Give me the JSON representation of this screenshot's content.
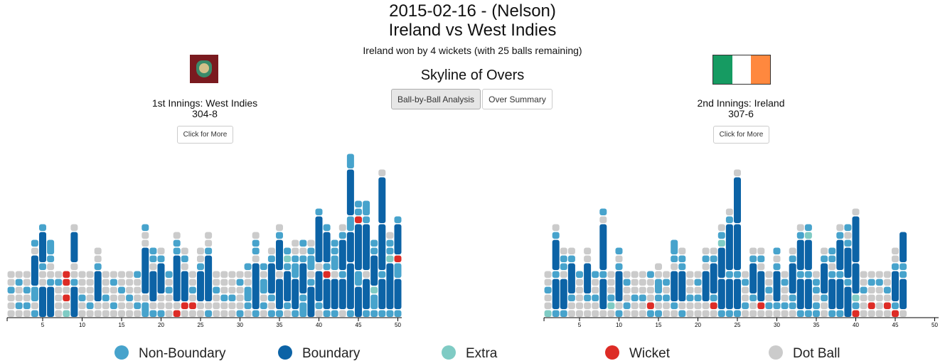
{
  "header": {
    "date_venue": "2015-02-16 - (Nelson)",
    "match": "Ireland vs West Indies",
    "result": "Ireland won by 4 wickets (with 25 balls remaining)",
    "section": "Skyline of Overs",
    "buttons": [
      "Ball-by-Ball Analysis",
      "Over Summary"
    ]
  },
  "innings": [
    {
      "label": "1st Innings: West Indies",
      "score": "304-8",
      "more": "Click for More",
      "xlim": [
        0,
        50
      ],
      "xticks": [
        5,
        10,
        15,
        20,
        25,
        30,
        35,
        40,
        45,
        50
      ],
      "overs": [
        [
          0,
          0,
          0,
          1,
          0,
          0
        ],
        [
          0,
          1,
          0,
          0,
          1,
          0
        ],
        [
          0,
          1,
          0,
          1,
          0,
          0
        ],
        [
          1,
          0,
          2,
          4,
          0,
          1
        ],
        [
          4,
          0,
          0,
          1,
          4,
          1
        ],
        [
          4,
          1,
          0,
          0,
          1,
          2
        ],
        [
          0,
          0,
          0,
          0,
          1,
          0
        ],
        [
          "e",
          0,
          "W",
          0,
          "W",
          "W"
        ],
        [
          4,
          1,
          0,
          0,
          4,
          0
        ],
        [
          0,
          0,
          1,
          0,
          0,
          0
        ],
        [
          0,
          1,
          0,
          0,
          0,
          0
        ],
        [
          0,
          0,
          4,
          1,
          0,
          0
        ],
        [
          0,
          0,
          1,
          0,
          0,
          0
        ],
        [
          0,
          1,
          0,
          0,
          1,
          0
        ],
        [
          0,
          0,
          0,
          1,
          0,
          0
        ],
        [
          0,
          0,
          1,
          0,
          0,
          0
        ],
        [
          0,
          1,
          0,
          0,
          0,
          1
        ],
        [
          2,
          0,
          6,
          0,
          0,
          1
        ],
        [
          1,
          0,
          4,
          0,
          1,
          1
        ],
        [
          1,
          0,
          0,
          4,
          1,
          0
        ],
        [
          0,
          0,
          0,
          1,
          0,
          1
        ],
        [
          "W",
          0,
          6,
          1,
          1,
          0
        ],
        [
          0,
          "W",
          4,
          0,
          1,
          0
        ],
        [
          0,
          "W",
          0,
          1,
          0,
          0
        ],
        [
          0,
          0,
          4,
          1,
          0,
          0
        ],
        [
          1,
          0,
          6,
          1,
          0,
          0
        ],
        [
          0,
          0,
          0,
          1,
          0,
          0
        ],
        [
          0,
          0,
          1,
          0,
          0,
          0
        ],
        [
          0,
          0,
          1,
          0,
          0,
          0
        ],
        [
          1,
          0,
          0,
          0,
          1,
          0
        ],
        [
          0,
          1,
          2,
          0,
          0,
          1
        ],
        [
          1,
          6,
          0,
          1,
          1,
          0
        ],
        [
          0,
          1,
          0,
          2,
          0,
          1
        ],
        [
          1,
          0,
          1,
          4,
          1,
          0
        ],
        [
          1,
          4,
          0,
          4,
          1,
          0
        ],
        [
          0,
          1,
          4,
          1,
          "e",
          1
        ],
        [
          1,
          4,
          2,
          1,
          0,
          0
        ],
        [
          2,
          1,
          4,
          1,
          0,
          1
        ],
        [
          4,
          1,
          0,
          2,
          1,
          0
        ],
        [
          0,
          1,
          4,
          0,
          6,
          1
        ],
        [
          1,
          4,
          "W",
          1,
          4,
          1
        ],
        [
          1,
          4,
          0,
          2,
          1,
          1
        ],
        [
          0,
          4,
          1,
          4,
          1,
          0
        ],
        [
          1,
          6,
          4,
          2,
          6,
          2
        ],
        [
          4,
          2,
          6,
          "W",
          1,
          1
        ],
        [
          1,
          4,
          0,
          6,
          1,
          2
        ],
        [
          1,
          2,
          "e",
          4,
          1,
          1
        ],
        [
          1,
          4,
          1,
          6,
          6,
          0
        ],
        [
          1,
          6,
          "e",
          1,
          1,
          0
        ],
        [
          1,
          4,
          2,
          "W",
          4,
          1
        ]
      ]
    },
    {
      "label": "2nd Innings: Ireland",
      "score": "307-6",
      "more": "Click for More",
      "xlim": [
        0,
        50
      ],
      "xticks": [
        5,
        10,
        15,
        20,
        25,
        30,
        35,
        40,
        45,
        50
      ],
      "overs": [
        [
          "e",
          0,
          0,
          1,
          0,
          0
        ],
        [
          1,
          4,
          1,
          4,
          1,
          0
        ],
        [
          1,
          4,
          0,
          1,
          1,
          0
        ],
        [
          0,
          0,
          1,
          4,
          1,
          0
        ],
        [
          0,
          0,
          0,
          0,
          0,
          1
        ],
        [
          0,
          0,
          1,
          4,
          0,
          0
        ],
        [
          0,
          0,
          1,
          0,
          0,
          1
        ],
        [
          0,
          4,
          1,
          6,
          0,
          1
        ],
        [
          0,
          "e",
          1,
          0,
          0,
          0
        ],
        [
          1,
          0,
          4,
          1,
          0,
          1
        ],
        [
          0,
          1,
          0,
          0,
          1,
          0
        ],
        [
          0,
          0,
          1,
          0,
          0,
          0
        ],
        [
          0,
          0,
          1,
          0,
          0,
          0
        ],
        [
          1,
          "W",
          0,
          0,
          0,
          1
        ],
        [
          1,
          0,
          1,
          2,
          0,
          0
        ],
        [
          0,
          0,
          1,
          0,
          1,
          0
        ],
        [
          0,
          1,
          4,
          0,
          1,
          2
        ],
        [
          1,
          0,
          4,
          1,
          1,
          0
        ],
        [
          0,
          0,
          1,
          0,
          0,
          0
        ],
        [
          0,
          0,
          1,
          0,
          1,
          0
        ],
        [
          0,
          0,
          4,
          0,
          1,
          0
        ],
        [
          0,
          "W",
          1,
          4,
          1,
          0
        ],
        [
          1,
          4,
          4,
          "e",
          1,
          0
        ],
        [
          1,
          4,
          1,
          6,
          1,
          0
        ],
        [
          1,
          4,
          1,
          6,
          6,
          0
        ],
        [
          0,
          1,
          0,
          0,
          1,
          0
        ],
        [
          0,
          0,
          1,
          4,
          1,
          0
        ],
        [
          0,
          "W",
          4,
          0,
          1,
          0
        ],
        [
          0,
          1,
          0,
          1,
          0,
          0
        ],
        [
          0,
          1,
          4,
          1,
          0,
          1
        ],
        [
          0,
          1,
          0,
          0,
          1,
          0
        ],
        [
          0,
          1,
          1,
          4,
          1,
          0
        ],
        [
          1,
          4,
          1,
          4,
          1,
          0
        ],
        [
          1,
          4,
          1,
          4,
          "e",
          1
        ],
        [
          1,
          1,
          0,
          1,
          1,
          0
        ],
        [
          0,
          0,
          1,
          4,
          1,
          0
        ],
        [
          1,
          4,
          1,
          0,
          1,
          1
        ],
        [
          1,
          4,
          1,
          4,
          1,
          0
        ],
        [
          4,
          1,
          4,
          1,
          0,
          1
        ],
        [
          "W",
          1,
          "e",
          4,
          6,
          0
        ],
        [
          0,
          0,
          0,
          1,
          0,
          0
        ],
        [
          0,
          "W",
          0,
          0,
          1,
          0
        ],
        [
          0,
          0,
          0,
          0,
          1,
          0
        ],
        [
          0,
          "W",
          0,
          1,
          0,
          0
        ],
        [
          "W",
          1,
          4,
          1,
          0,
          0
        ],
        [
          0,
          4,
          1,
          1,
          4
        ]
      ]
    }
  ],
  "legend": [
    {
      "name": "Non-Boundary",
      "color": "#47a3cc"
    },
    {
      "name": "Boundary",
      "color": "#0c63a6"
    },
    {
      "name": "Extra",
      "color": "#7fcbc4"
    },
    {
      "name": "Wicket",
      "color": "#dd2c26"
    },
    {
      "name": "Dot Ball",
      "color": "#cbcbcb"
    }
  ]
}
